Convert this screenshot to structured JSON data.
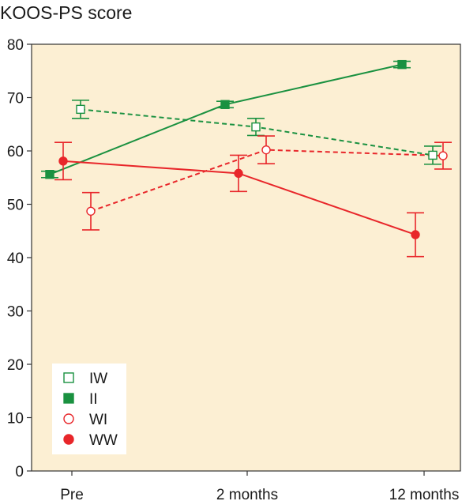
{
  "chart_data": {
    "type": "line",
    "title": "KOOS-PS score",
    "xlabel": "",
    "ylabel": "",
    "categories": [
      "Pre",
      "2 months",
      "12 months"
    ],
    "ylim": [
      0,
      80
    ],
    "yticks": [
      0,
      10,
      20,
      30,
      40,
      50,
      60,
      70,
      80
    ],
    "grid": false,
    "legend_position": "bottom-left",
    "background_color": "#fcefd3",
    "series": [
      {
        "name": "IW",
        "color": "#1a9140",
        "marker": "open-square",
        "line_style": "dashed",
        "values": [
          67.8,
          64.5,
          59.2
        ],
        "err_low": [
          66.1,
          62.9,
          57.5
        ],
        "err_high": [
          69.5,
          66.1,
          60.9
        ]
      },
      {
        "name": "II",
        "color": "#1a9140",
        "marker": "filled-square",
        "line_style": "solid",
        "values": [
          55.6,
          68.7,
          76.2
        ],
        "err_low": [
          55.0,
          68.1,
          75.6
        ],
        "err_high": [
          56.2,
          69.3,
          76.8
        ]
      },
      {
        "name": "WI",
        "color": "#e8262a",
        "marker": "open-circle",
        "line_style": "dashed",
        "values": [
          48.7,
          60.2,
          59.1
        ],
        "err_low": [
          45.2,
          57.6,
          56.6
        ],
        "err_high": [
          52.2,
          62.8,
          61.6
        ]
      },
      {
        "name": "WW",
        "color": "#e8262a",
        "marker": "filled-circle",
        "line_style": "solid",
        "values": [
          58.1,
          55.8,
          44.3
        ],
        "err_low": [
          54.6,
          52.4,
          40.2
        ],
        "err_high": [
          61.6,
          59.2,
          48.4
        ]
      }
    ]
  }
}
